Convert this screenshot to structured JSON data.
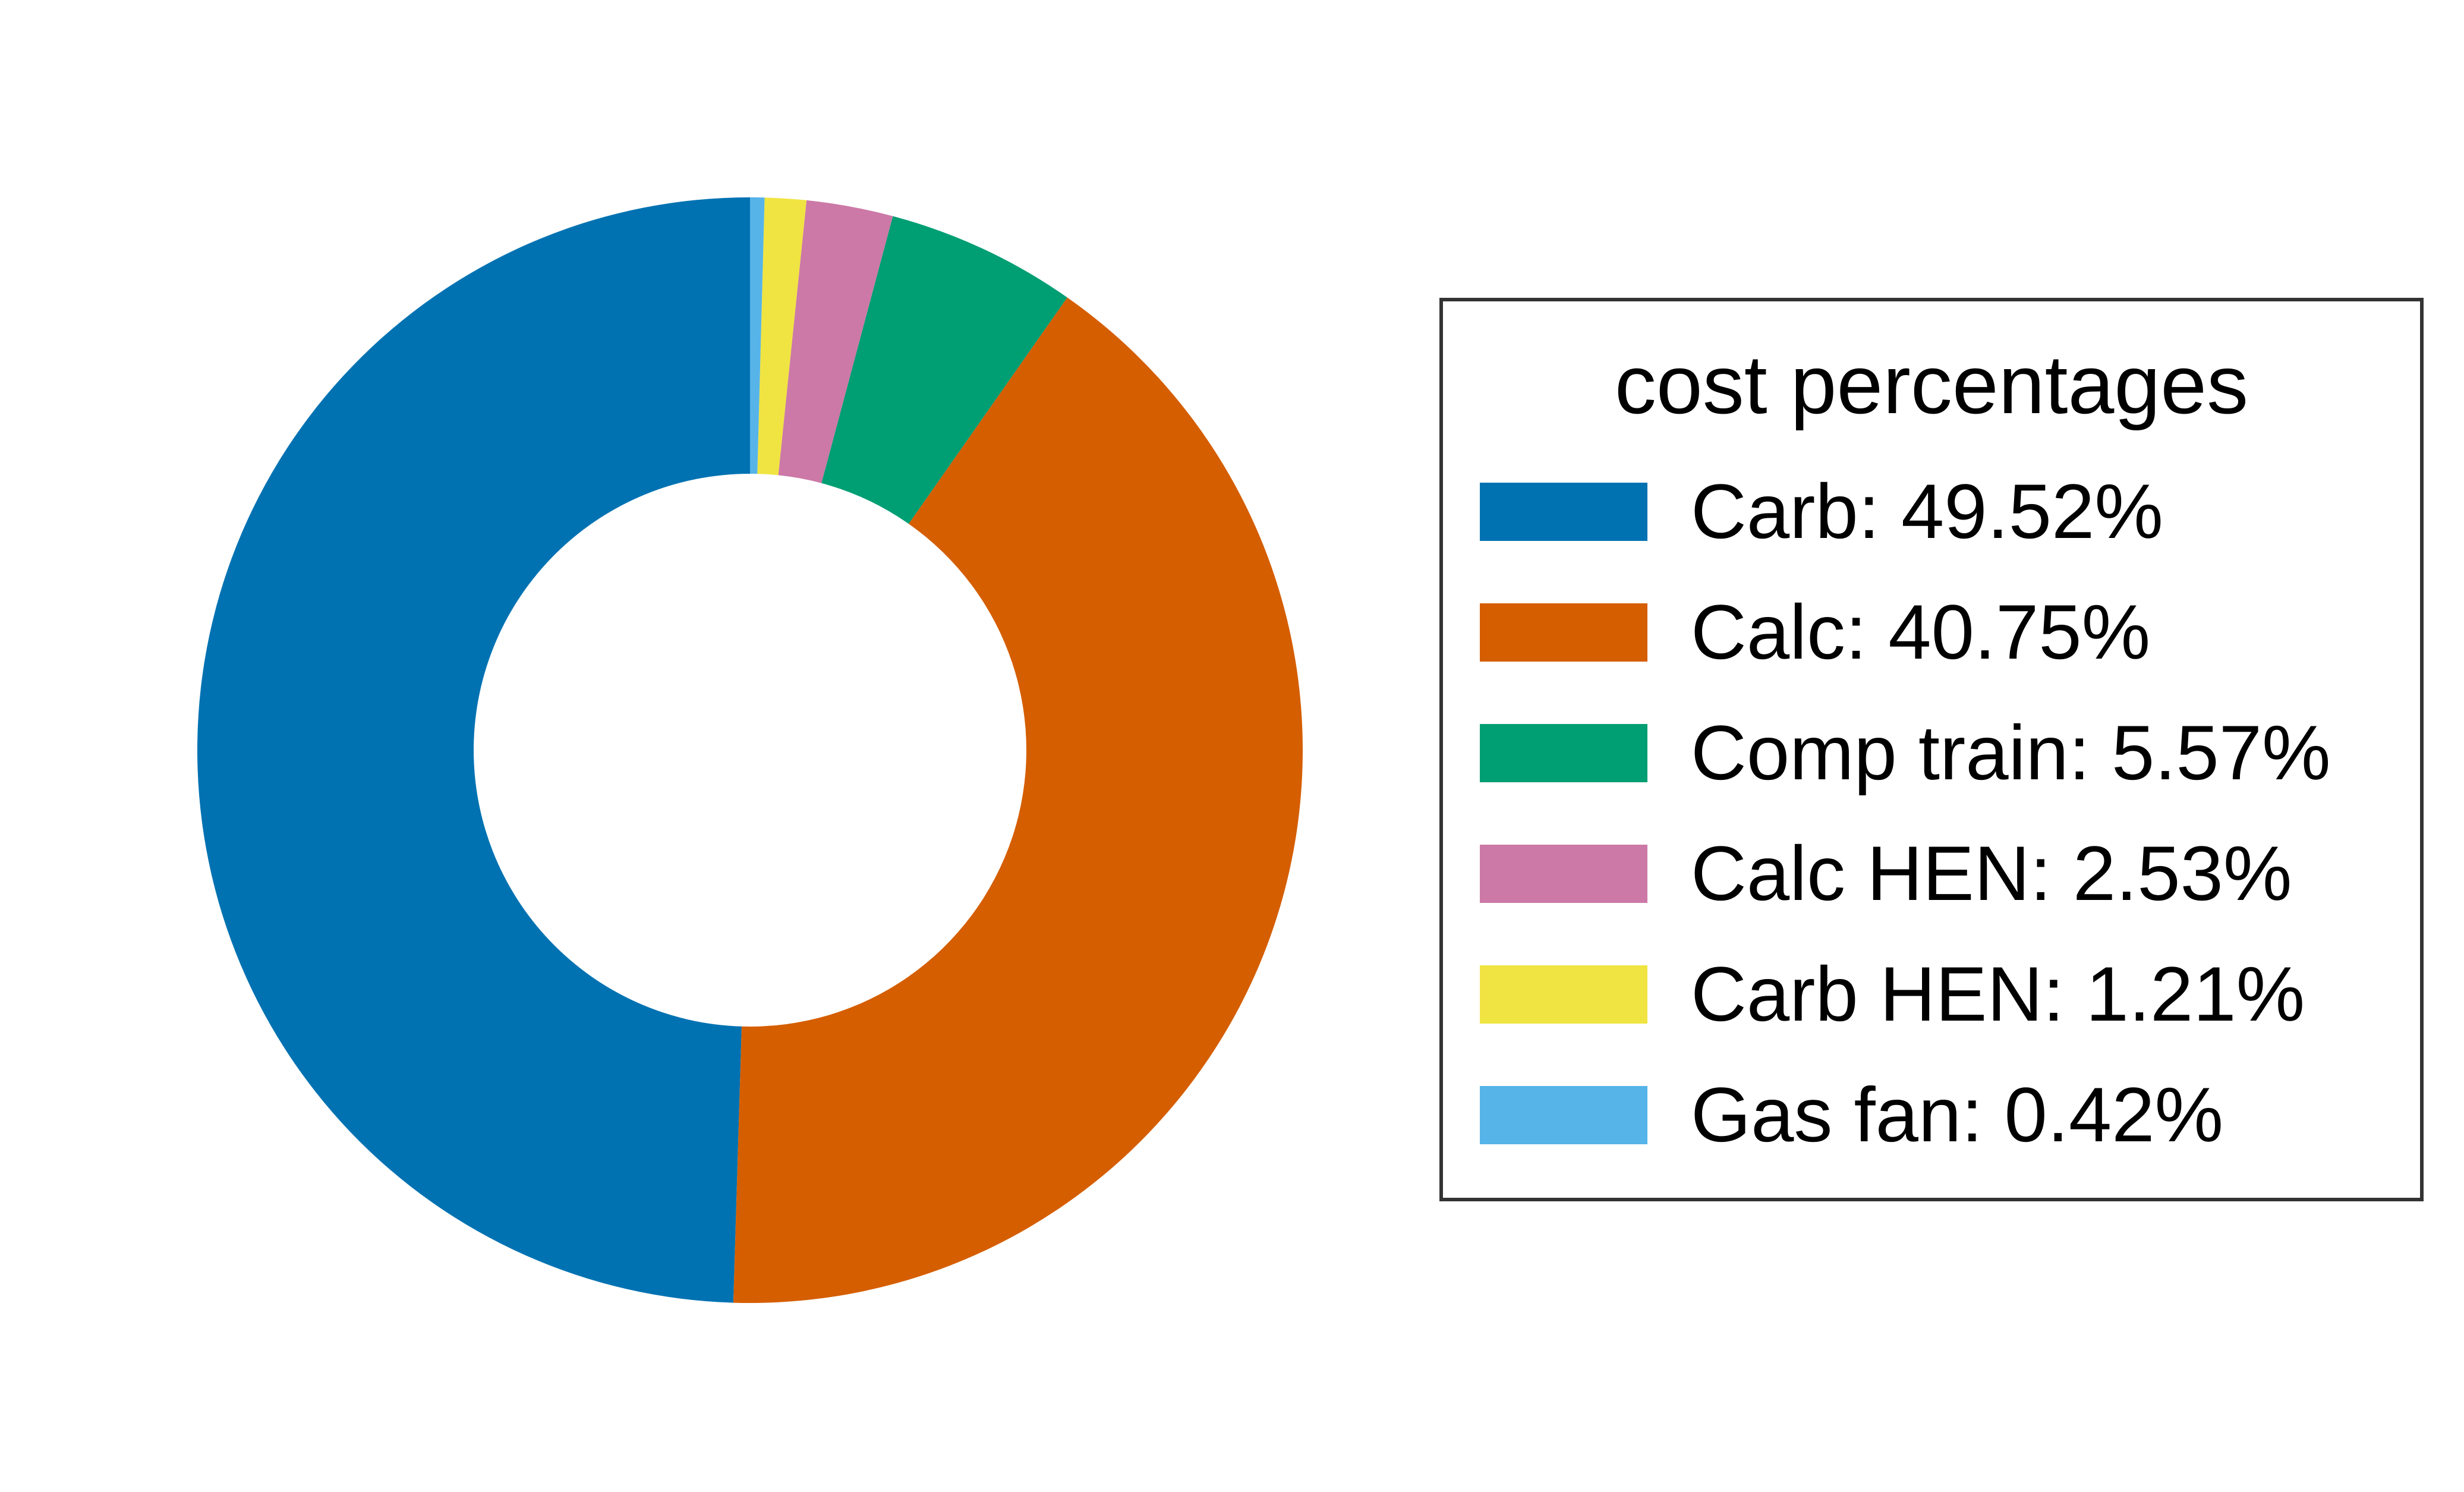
{
  "chart_data": {
    "type": "pie",
    "subtype": "donut",
    "start_angle_deg": 90,
    "direction": "counterclockwise",
    "legend": {
      "title": "cost percentages",
      "placement": "right"
    },
    "slices": [
      {
        "name": "Carb",
        "label": "Carb: 49.52%",
        "value": 49.52,
        "color": "#0072b2"
      },
      {
        "name": "Calc",
        "label": "Calc: 40.75%",
        "value": 40.75,
        "color": "#d55e00"
      },
      {
        "name": "Comp train",
        "label": "Comp train: 5.57%",
        "value": 5.57,
        "color": "#009e73"
      },
      {
        "name": "Calc HEN",
        "label": "Calc HEN: 2.53%",
        "value": 2.53,
        "color": "#cc79a7"
      },
      {
        "name": "Carb HEN",
        "label": "Carb HEN: 1.21%",
        "value": 1.21,
        "color": "#f0e442"
      },
      {
        "name": "Gas fan",
        "label": "Gas fan: 0.42%",
        "value": 0.42,
        "color": "#56b4e9"
      }
    ]
  }
}
